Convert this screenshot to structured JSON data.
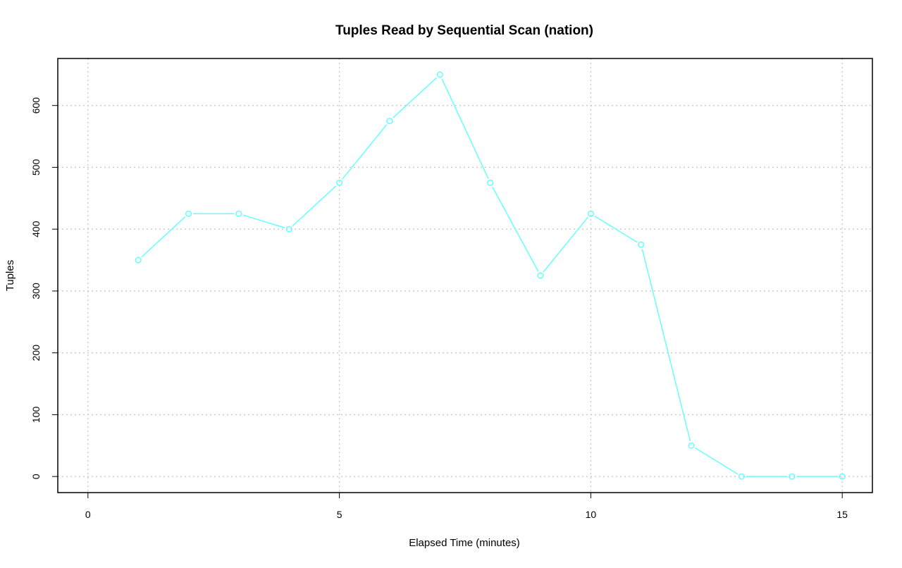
{
  "chart_data": {
    "type": "line",
    "title": "Tuples Read by Sequential Scan (nation)",
    "xlabel": "Elapsed Time (minutes)",
    "ylabel": "Tuples",
    "x": [
      1,
      2,
      3,
      4,
      5,
      6,
      7,
      8,
      9,
      10,
      11,
      12,
      13,
      14,
      15
    ],
    "series": [
      {
        "values": [
          350,
          425,
          425,
          400,
          475,
          575,
          650,
          475,
          325,
          425,
          375,
          50,
          0,
          0,
          0
        ],
        "color": "#66ffff",
        "marker": "open-circle"
      }
    ],
    "x_ticks": [
      0,
      5,
      10,
      15
    ],
    "y_ticks": [
      0,
      100,
      200,
      300,
      400,
      500,
      600
    ],
    "xlim": [
      -0.6,
      15.6
    ],
    "ylim": [
      -26,
      676
    ],
    "grid": true,
    "grid_style": "dotted",
    "grid_color": "#c8c8c8",
    "legend": "none"
  }
}
